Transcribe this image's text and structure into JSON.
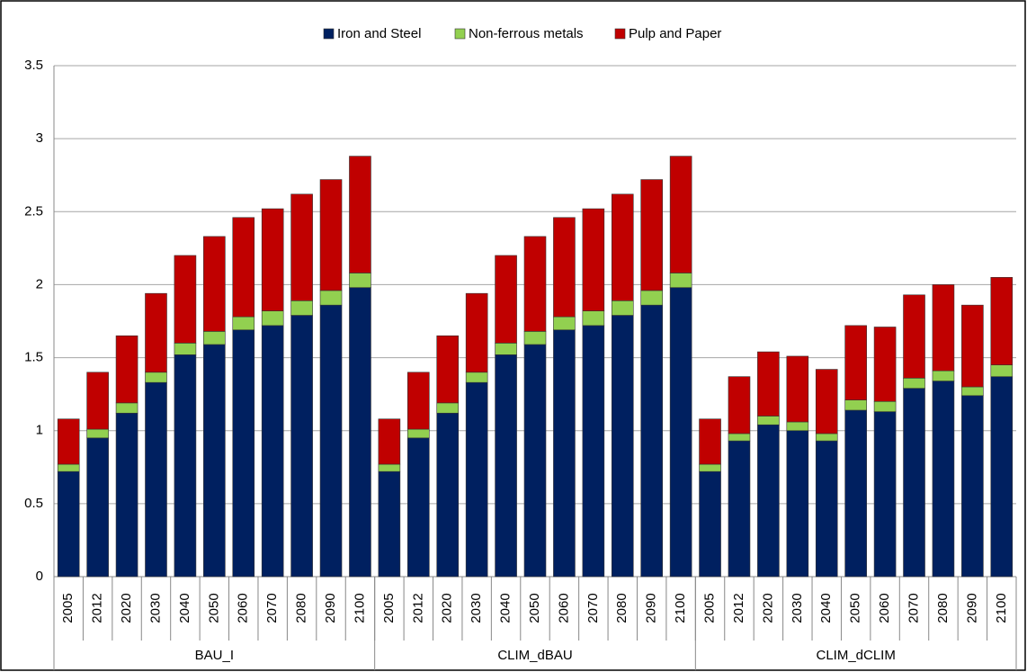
{
  "chart_data": {
    "type": "stacked_bar",
    "groups": [
      {
        "label": "BAU_I",
        "categories": [
          "2005",
          "2012",
          "2020",
          "2030",
          "2040",
          "2050",
          "2060",
          "2070",
          "2080",
          "2090",
          "2100"
        ]
      },
      {
        "label": "CLIM_dBAU",
        "categories": [
          "2005",
          "2012",
          "2020",
          "2030",
          "2040",
          "2050",
          "2060",
          "2070",
          "2080",
          "2090",
          "2100"
        ]
      },
      {
        "label": "CLIM_dCLIM",
        "categories": [
          "2005",
          "2012",
          "2020",
          "2030",
          "2040",
          "2050",
          "2060",
          "2070",
          "2080",
          "2090",
          "2100"
        ]
      }
    ],
    "series": [
      {
        "name": "Iron and Steel",
        "color": "#002060",
        "values": [
          0.72,
          0.95,
          1.12,
          1.33,
          1.52,
          1.59,
          1.69,
          1.72,
          1.79,
          1.86,
          1.98,
          0.72,
          0.95,
          1.12,
          1.33,
          1.52,
          1.59,
          1.69,
          1.72,
          1.79,
          1.86,
          1.98,
          0.72,
          0.93,
          1.04,
          1.0,
          0.93,
          1.14,
          1.13,
          1.29,
          1.34,
          1.24,
          1.37
        ]
      },
      {
        "name": "Non-ferrous metals",
        "color": "#92d050",
        "values": [
          0.05,
          0.06,
          0.07,
          0.07,
          0.08,
          0.09,
          0.09,
          0.1,
          0.1,
          0.1,
          0.1,
          0.05,
          0.06,
          0.07,
          0.07,
          0.08,
          0.09,
          0.09,
          0.1,
          0.1,
          0.1,
          0.1,
          0.05,
          0.05,
          0.06,
          0.06,
          0.05,
          0.07,
          0.07,
          0.07,
          0.07,
          0.06,
          0.08
        ]
      },
      {
        "name": "Pulp and Paper",
        "color": "#c00000",
        "values": [
          0.31,
          0.39,
          0.46,
          0.54,
          0.6,
          0.65,
          0.68,
          0.7,
          0.73,
          0.76,
          0.8,
          0.31,
          0.39,
          0.46,
          0.54,
          0.6,
          0.65,
          0.68,
          0.7,
          0.73,
          0.76,
          0.8,
          0.31,
          0.39,
          0.44,
          0.45,
          0.44,
          0.51,
          0.51,
          0.57,
          0.59,
          0.56,
          0.6
        ]
      }
    ],
    "ylim": [
      0,
      3.5
    ],
    "yticks": [
      0,
      0.5,
      1,
      1.5,
      2,
      2.5,
      3,
      3.5
    ],
    "grid": true,
    "legend": "top"
  }
}
